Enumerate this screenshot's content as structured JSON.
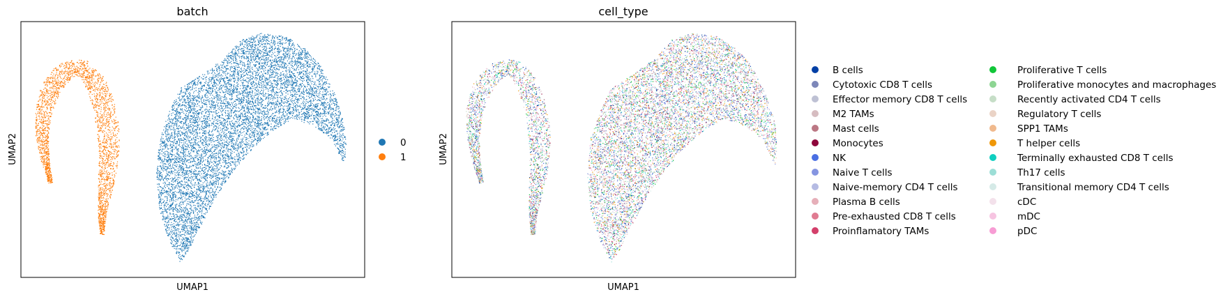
{
  "chart_data": [
    {
      "type": "scatter",
      "title": "batch",
      "xlabel": "UMAP1",
      "ylabel": "UMAP2",
      "grid": false,
      "ticks": false,
      "legend_placement": "right",
      "colors": {
        "0": "#1f77b4",
        "1": "#ff7f0e"
      },
      "series": [
        {
          "name": "0",
          "color": "#1f77b4",
          "region": "large fan-shaped cluster (right)",
          "relative_density": 0.78
        },
        {
          "name": "1",
          "color": "#ff7f0e",
          "region": "thin arc cluster (left)",
          "relative_density": 0.22
        }
      ]
    },
    {
      "type": "scatter",
      "title": "cell_type",
      "xlabel": "UMAP1",
      "ylabel": "UMAP2",
      "grid": false,
      "ticks": false,
      "legend_placement": "right (two columns)",
      "series": [
        {
          "name": "B cells",
          "color": "#023fa5"
        },
        {
          "name": "Cytotoxic CD8 T cells",
          "color": "#7d87b9"
        },
        {
          "name": "Effector memory CD8 T cells",
          "color": "#bec1d4"
        },
        {
          "name": "M2 TAMs",
          "color": "#d6bcc0"
        },
        {
          "name": "Mast cells",
          "color": "#bb7784"
        },
        {
          "name": "Monocytes",
          "color": "#8e063b"
        },
        {
          "name": "NK",
          "color": "#4a6fe3"
        },
        {
          "name": "Naive T cells",
          "color": "#8595e1"
        },
        {
          "name": "Naive-memory CD4 T cells",
          "color": "#b5bbe3"
        },
        {
          "name": "Plasma B cells",
          "color": "#e6afb9"
        },
        {
          "name": "Pre-exhausted CD8 T cells",
          "color": "#e07b91"
        },
        {
          "name": "Proinflamatory TAMs",
          "color": "#d33f6a"
        },
        {
          "name": "Proliferative T cells",
          "color": "#11c638"
        },
        {
          "name": "Proliferative monocytes and macrophages",
          "color": "#8dd593"
        },
        {
          "name": "Recently activated CD4 T cells",
          "color": "#c6dec7"
        },
        {
          "name": "Regulatory T cells",
          "color": "#ead3c6"
        },
        {
          "name": "SPP1 TAMs",
          "color": "#f0b98d"
        },
        {
          "name": "T helper cells",
          "color": "#ef9708"
        },
        {
          "name": "Terminally exhausted CD8 T cells",
          "color": "#0fcfc0"
        },
        {
          "name": "Th17 cells",
          "color": "#9cded6"
        },
        {
          "name": "Transitional memory CD4 T cells",
          "color": "#d5eae7"
        },
        {
          "name": "cDC",
          "color": "#f3e1eb"
        },
        {
          "name": "mDC",
          "color": "#f6c4e1"
        },
        {
          "name": "pDC",
          "color": "#f79cd4"
        }
      ]
    }
  ]
}
